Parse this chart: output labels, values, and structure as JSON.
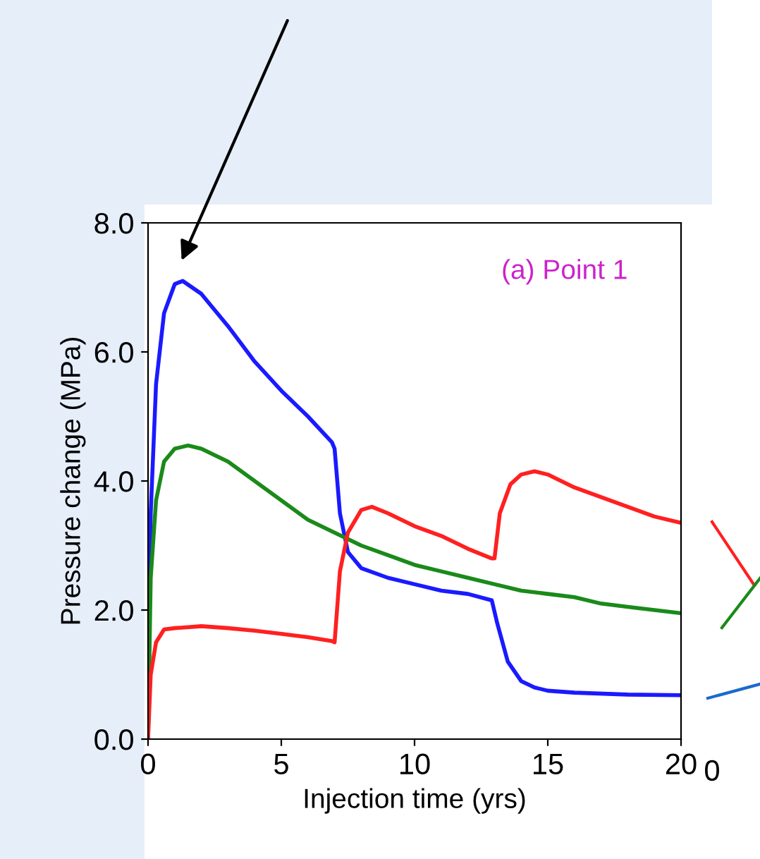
{
  "chart_data": {
    "type": "line",
    "title": "(a) Point 1",
    "xlabel": "Injection time (yrs)",
    "ylabel": "Pressure change (MPa)",
    "xlim": [
      0,
      20
    ],
    "xticks": [
      0,
      5,
      10,
      15,
      20
    ],
    "ylim": [
      0,
      8
    ],
    "yticks": [
      {
        "value": 0,
        "label": "0.0"
      },
      {
        "value": 2,
        "label": "2.0"
      },
      {
        "value": 4,
        "label": "4.0"
      },
      {
        "value": 6,
        "label": "6.0"
      },
      {
        "value": 8,
        "label": "8.0"
      }
    ],
    "grid": false,
    "legend": false,
    "marker": "none",
    "line_style": "solid",
    "annotations": [
      "0"
    ],
    "series": [
      {
        "color": "#1a1aff",
        "x": [
          0,
          0.1,
          0.3,
          0.6,
          1,
          1.3,
          2,
          3,
          4,
          5,
          6,
          6.9,
          7.0,
          7.2,
          7.5,
          8,
          9,
          10,
          11,
          12,
          12.9,
          13.1,
          13.5,
          14,
          14.5,
          15,
          16,
          18,
          20
        ],
        "values": [
          0,
          3.5,
          5.5,
          6.6,
          7.05,
          7.1,
          6.9,
          6.4,
          5.85,
          5.4,
          5.0,
          4.6,
          4.5,
          3.5,
          2.9,
          2.65,
          2.5,
          2.4,
          2.3,
          2.25,
          2.15,
          1.8,
          1.2,
          0.9,
          0.8,
          0.75,
          0.72,
          0.69,
          0.68
        ]
      },
      {
        "color": "#1a8a1a",
        "x": [
          0,
          0.1,
          0.3,
          0.6,
          1,
          1.5,
          2,
          3,
          4,
          5,
          6,
          7,
          8,
          9,
          10,
          11,
          12,
          13,
          14,
          15,
          16,
          17,
          18,
          19,
          20
        ],
        "values": [
          0,
          2.5,
          3.7,
          4.3,
          4.5,
          4.55,
          4.5,
          4.3,
          4.0,
          3.7,
          3.4,
          3.2,
          3.0,
          2.85,
          2.7,
          2.6,
          2.5,
          2.4,
          2.3,
          2.25,
          2.2,
          2.1,
          2.05,
          2.0,
          1.95
        ]
      },
      {
        "color": "#ff2020",
        "x": [
          0,
          0.1,
          0.3,
          0.6,
          1,
          2,
          3,
          4,
          5,
          6,
          6.9,
          7.0,
          7.2,
          7.5,
          8,
          8.4,
          9,
          10,
          11,
          12,
          12.9,
          13.0,
          13.2,
          13.6,
          14,
          14.5,
          15,
          16,
          17,
          18,
          19,
          20
        ],
        "values": [
          0,
          1.0,
          1.5,
          1.7,
          1.72,
          1.75,
          1.72,
          1.68,
          1.63,
          1.58,
          1.52,
          1.5,
          2.6,
          3.2,
          3.55,
          3.6,
          3.5,
          3.3,
          3.15,
          2.95,
          2.8,
          2.8,
          3.5,
          3.95,
          4.1,
          4.15,
          4.1,
          3.9,
          3.75,
          3.6,
          3.45,
          3.35
        ]
      }
    ]
  }
}
